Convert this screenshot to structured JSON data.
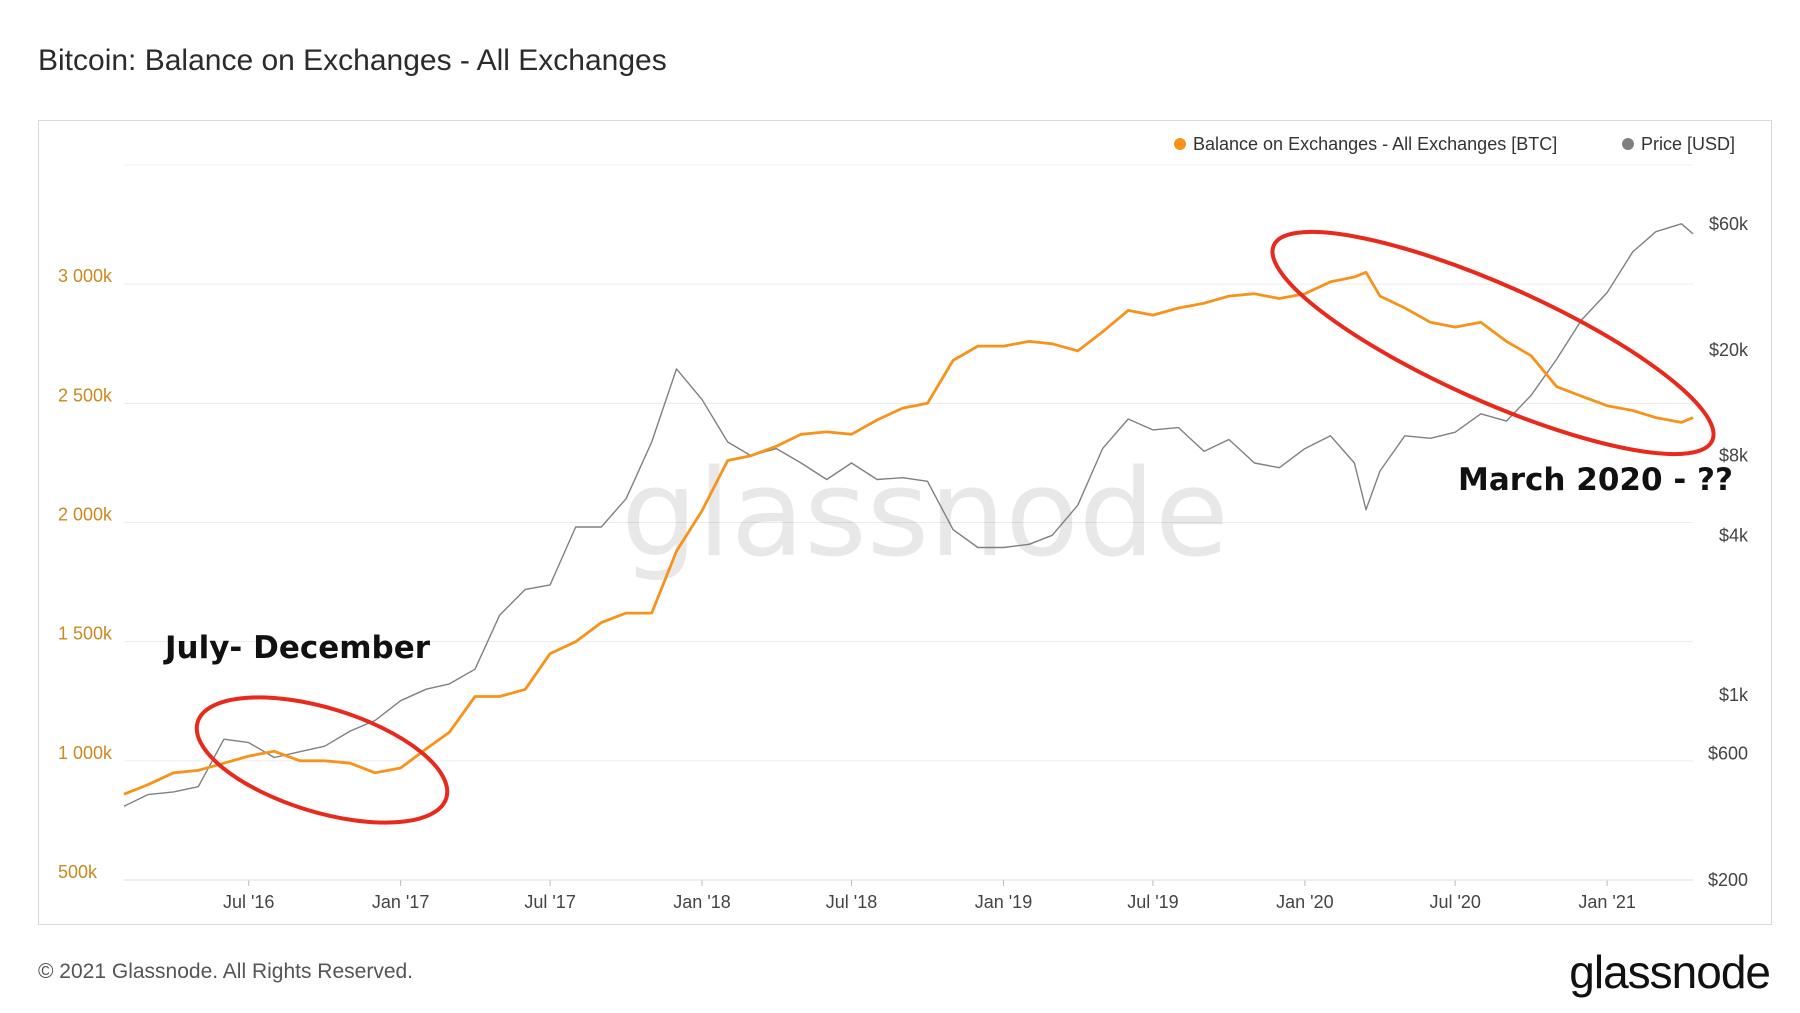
{
  "title": "Bitcoin: Balance on Exchanges - All Exchanges",
  "footer": "© 2021 Glassnode. All Rights Reserved.",
  "brand": "glassnode",
  "watermark": "glassnode",
  "colors": {
    "balance": "#f7931a",
    "price": "#808080",
    "ellipse": "#e8291c"
  },
  "chart_data": {
    "type": "line",
    "legend_position": "top-right",
    "grid": true,
    "x_ticks": [
      "Jul '16",
      "Jan '17",
      "Jul '17",
      "Jan '18",
      "Jul '18",
      "Jan '19",
      "Jul '19",
      "Jan '20",
      "Jul '20",
      "Jan '21"
    ],
    "x_range": [
      "2016-02-01",
      "2021-04-15"
    ],
    "y_left_ticks": [
      "3 000k",
      "2 500k",
      "2 000k",
      "1 500k",
      "1 000k",
      "500k"
    ],
    "y_left_range": [
      500000,
      3500000
    ],
    "y_right_ticks": [
      "$60k",
      "$20k",
      "$8k",
      "$4k",
      "$1k",
      "$600",
      "$200"
    ],
    "y_right_scale": "log",
    "y_right_range": [
      200,
      100000
    ],
    "annotations": [
      "July- December",
      "March 2020 - ??"
    ],
    "series": [
      {
        "name": "Balance on Exchanges - All Exchanges [BTC]",
        "axis": "left",
        "points": [
          [
            "2016-02-01",
            860000
          ],
          [
            "2016-03-01",
            900000
          ],
          [
            "2016-04-01",
            950000
          ],
          [
            "2016-05-01",
            960000
          ],
          [
            "2016-06-01",
            990000
          ],
          [
            "2016-07-01",
            1020000
          ],
          [
            "2016-08-01",
            1040000
          ],
          [
            "2016-09-01",
            1000000
          ],
          [
            "2016-10-01",
            1000000
          ],
          [
            "2016-11-01",
            990000
          ],
          [
            "2016-12-01",
            950000
          ],
          [
            "2017-01-01",
            970000
          ],
          [
            "2017-02-01",
            1050000
          ],
          [
            "2017-03-01",
            1120000
          ],
          [
            "2017-04-01",
            1270000
          ],
          [
            "2017-05-01",
            1270000
          ],
          [
            "2017-06-01",
            1300000
          ],
          [
            "2017-07-01",
            1450000
          ],
          [
            "2017-08-01",
            1500000
          ],
          [
            "2017-09-01",
            1580000
          ],
          [
            "2017-10-01",
            1620000
          ],
          [
            "2017-11-01",
            1620000
          ],
          [
            "2017-12-01",
            1880000
          ],
          [
            "2018-01-01",
            2050000
          ],
          [
            "2018-02-01",
            2260000
          ],
          [
            "2018-03-01",
            2280000
          ],
          [
            "2018-04-01",
            2320000
          ],
          [
            "2018-05-01",
            2370000
          ],
          [
            "2018-06-01",
            2380000
          ],
          [
            "2018-07-01",
            2370000
          ],
          [
            "2018-08-01",
            2430000
          ],
          [
            "2018-09-01",
            2480000
          ],
          [
            "2018-10-01",
            2500000
          ],
          [
            "2018-11-01",
            2680000
          ],
          [
            "2018-12-01",
            2740000
          ],
          [
            "2019-01-01",
            2740000
          ],
          [
            "2019-02-01",
            2760000
          ],
          [
            "2019-03-01",
            2750000
          ],
          [
            "2019-04-01",
            2720000
          ],
          [
            "2019-05-01",
            2800000
          ],
          [
            "2019-06-01",
            2890000
          ],
          [
            "2019-07-01",
            2870000
          ],
          [
            "2019-08-01",
            2900000
          ],
          [
            "2019-09-01",
            2920000
          ],
          [
            "2019-10-01",
            2950000
          ],
          [
            "2019-11-01",
            2960000
          ],
          [
            "2019-12-01",
            2940000
          ],
          [
            "2020-01-01",
            2960000
          ],
          [
            "2020-02-01",
            3010000
          ],
          [
            "2020-03-01",
            3030000
          ],
          [
            "2020-03-15",
            3050000
          ],
          [
            "2020-04-01",
            2950000
          ],
          [
            "2020-05-01",
            2900000
          ],
          [
            "2020-06-01",
            2840000
          ],
          [
            "2020-07-01",
            2820000
          ],
          [
            "2020-08-01",
            2840000
          ],
          [
            "2020-09-01",
            2760000
          ],
          [
            "2020-10-01",
            2700000
          ],
          [
            "2020-11-01",
            2570000
          ],
          [
            "2020-12-01",
            2530000
          ],
          [
            "2021-01-01",
            2490000
          ],
          [
            "2021-02-01",
            2470000
          ],
          [
            "2021-03-01",
            2440000
          ],
          [
            "2021-04-01",
            2420000
          ],
          [
            "2021-04-15",
            2440000
          ]
        ]
      },
      {
        "name": "Price [USD]",
        "axis": "right",
        "points": [
          [
            "2016-02-01",
            380
          ],
          [
            "2016-03-01",
            420
          ],
          [
            "2016-04-01",
            430
          ],
          [
            "2016-05-01",
            450
          ],
          [
            "2016-06-01",
            680
          ],
          [
            "2016-07-01",
            660
          ],
          [
            "2016-08-01",
            580
          ],
          [
            "2016-09-01",
            610
          ],
          [
            "2016-10-01",
            640
          ],
          [
            "2016-11-01",
            730
          ],
          [
            "2016-12-01",
            800
          ],
          [
            "2017-01-01",
            950
          ],
          [
            "2017-02-01",
            1050
          ],
          [
            "2017-03-01",
            1100
          ],
          [
            "2017-04-01",
            1250
          ],
          [
            "2017-05-01",
            2000
          ],
          [
            "2017-06-01",
            2500
          ],
          [
            "2017-07-01",
            2600
          ],
          [
            "2017-08-01",
            4300
          ],
          [
            "2017-09-01",
            4300
          ],
          [
            "2017-10-01",
            5500
          ],
          [
            "2017-11-01",
            9000
          ],
          [
            "2017-12-01",
            17000
          ],
          [
            "2018-01-01",
            13000
          ],
          [
            "2018-02-01",
            9000
          ],
          [
            "2018-03-01",
            8000
          ],
          [
            "2018-04-01",
            8500
          ],
          [
            "2018-05-01",
            7500
          ],
          [
            "2018-06-01",
            6500
          ],
          [
            "2018-07-01",
            7500
          ],
          [
            "2018-08-01",
            6500
          ],
          [
            "2018-09-01",
            6600
          ],
          [
            "2018-10-01",
            6400
          ],
          [
            "2018-11-01",
            4200
          ],
          [
            "2018-12-01",
            3600
          ],
          [
            "2019-01-01",
            3600
          ],
          [
            "2019-02-01",
            3700
          ],
          [
            "2019-03-01",
            4000
          ],
          [
            "2019-04-01",
            5200
          ],
          [
            "2019-05-01",
            8500
          ],
          [
            "2019-06-01",
            11000
          ],
          [
            "2019-07-01",
            10000
          ],
          [
            "2019-08-01",
            10200
          ],
          [
            "2019-09-01",
            8300
          ],
          [
            "2019-10-01",
            9200
          ],
          [
            "2019-11-01",
            7500
          ],
          [
            "2019-12-01",
            7200
          ],
          [
            "2020-01-01",
            8500
          ],
          [
            "2020-02-01",
            9500
          ],
          [
            "2020-03-01",
            7500
          ],
          [
            "2020-03-15",
            5000
          ],
          [
            "2020-04-01",
            7000
          ],
          [
            "2020-05-01",
            9500
          ],
          [
            "2020-06-01",
            9300
          ],
          [
            "2020-07-01",
            9800
          ],
          [
            "2020-08-01",
            11500
          ],
          [
            "2020-09-01",
            10800
          ],
          [
            "2020-10-01",
            13500
          ],
          [
            "2020-11-01",
            18500
          ],
          [
            "2020-12-01",
            26000
          ],
          [
            "2021-01-01",
            33000
          ],
          [
            "2021-02-01",
            47000
          ],
          [
            "2021-03-01",
            56000
          ],
          [
            "2021-04-01",
            60000
          ],
          [
            "2021-04-15",
            55000
          ]
        ]
      }
    ]
  }
}
